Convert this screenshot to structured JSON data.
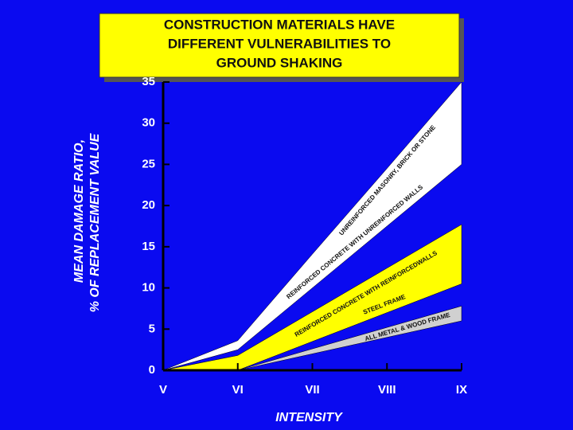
{
  "chart_data": {
    "type": "band",
    "title": [
      "CONSTRUCTION MATERIALS HAVE",
      "DIFFERENT VULNERABILITIES TO",
      "GROUND SHAKING"
    ],
    "y_label": [
      "MEAN DAMAGE RATIO,",
      "% OF REPLACEMENT VALUE"
    ],
    "x_label": "INTENSITY",
    "categories": [
      "V",
      "VI",
      "VII",
      "VIII",
      "IX"
    ],
    "ylim": [
      0,
      35
    ],
    "yticks": [
      0,
      5,
      10,
      15,
      20,
      25,
      30,
      35
    ],
    "series": [
      {
        "labels": [
          "UNREINFORCED MASONRY, BRICK OR STONE",
          "REINFORCED CONCRETE WITH UNREINFORCED WALLS"
        ],
        "color": "#ffffff",
        "upper": [
          0,
          3.6,
          14.1,
          24.5,
          35
        ],
        "lower": [
          0,
          2.5,
          10,
          17.5,
          25
        ]
      },
      {
        "labels": [
          "REINFORCED CONCRETE WITH REINFORCEDWALLS",
          "STEEL FRAME"
        ],
        "color": "#ffff00",
        "upper": [
          0,
          1.8,
          7.1,
          12.4,
          17.7
        ],
        "lower": [
          0,
          0,
          3.5,
          7,
          10.5
        ]
      },
      {
        "labels": [
          "ALL METAL & WOOD FRAME"
        ],
        "color": "#d0d0d0",
        "upper": [
          0,
          0,
          2.6,
          5.2,
          7.8
        ],
        "lower": [
          0,
          0,
          2,
          4,
          6
        ]
      }
    ]
  }
}
